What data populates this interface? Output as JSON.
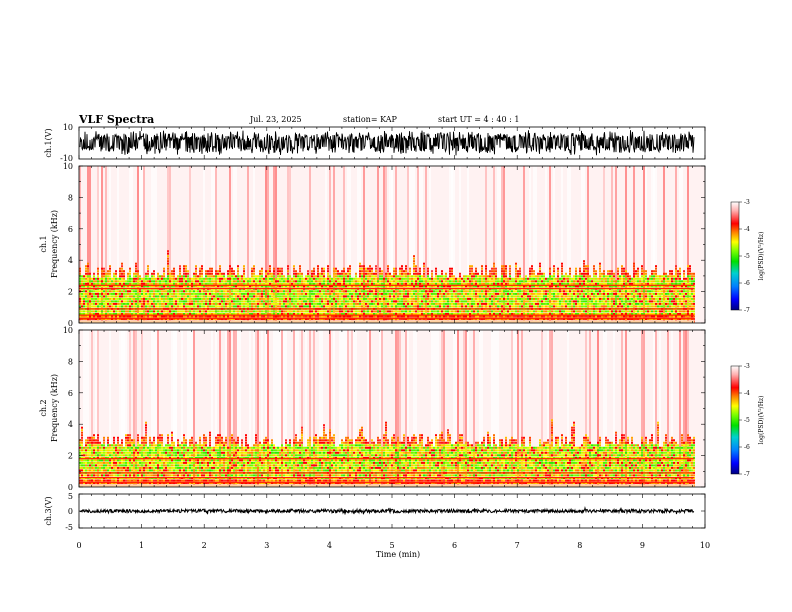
{
  "header": {
    "title": "VLF Spectra",
    "date": "Jul. 23, 2025",
    "station": "station= KAP",
    "start": "start  UT =   4 : 40 : 1"
  },
  "colors": {
    "stops": [
      "#000080",
      "#0000ff",
      "#0080ff",
      "#00d0d0",
      "#00e000",
      "#80ff00",
      "#ffff00",
      "#ff8000",
      "#ff0000",
      "#ffb0b0",
      "#ffffff"
    ],
    "spectrogram_background": "#fff2f2"
  },
  "chart_data": [
    {
      "type": "line",
      "name": "ch1-waveform",
      "ylabel": "ch.1(V)",
      "ylim": [
        -10,
        10
      ],
      "yticks": [
        "10",
        "-10"
      ],
      "xlim": [
        0,
        10
      ],
      "description": "dense oscillating voltage trace over 0-9.8 min",
      "amplitude_range": [
        -8,
        8
      ]
    },
    {
      "type": "heatmap",
      "name": "ch1-spectrogram",
      "ylabel": "ch.1",
      "ylabel2": "Frequency (kHz)",
      "ylim": [
        0,
        10
      ],
      "yticks": [
        "0",
        "2",
        "4",
        "6",
        "8",
        "10"
      ],
      "xlim": [
        0,
        10
      ],
      "data_end_min": 9.83,
      "band_top_khz": 3.5,
      "dense_band_khz": [
        0.4,
        3.0
      ],
      "horizontal_lines_khz": [
        0.3,
        0.5,
        0.9,
        2.2,
        2.4
      ],
      "colorbar": {
        "label": "log(PSD)(V²/Hz)",
        "range": [
          -7,
          -3
        ],
        "ticks": [
          "-3",
          "-4",
          "-5",
          "-6",
          "-7"
        ]
      }
    },
    {
      "type": "heatmap",
      "name": "ch2-spectrogram",
      "ylabel": "ch.2",
      "ylabel2": "Frequency (kHz)",
      "ylim": [
        0,
        10
      ],
      "yticks": [
        "0",
        "2",
        "4",
        "6",
        "8",
        "10"
      ],
      "xlim": [
        0,
        10
      ],
      "data_end_min": 9.83,
      "band_top_khz": 3.2,
      "dense_band_khz": [
        0.4,
        2.7
      ],
      "horizontal_lines_khz": [
        0.3,
        0.6,
        0.9,
        1.8
      ],
      "colorbar": {
        "label": "log(PSD)(V²/Hz)",
        "range": [
          -7,
          -3
        ],
        "ticks": [
          "-3",
          "-4",
          "-5",
          "-6",
          "-7"
        ]
      }
    },
    {
      "type": "line",
      "name": "ch3-waveform",
      "ylabel": "ch.3(V)",
      "ylim": [
        -5,
        5
      ],
      "yticks": [
        "5",
        "0",
        "-5"
      ],
      "xlim": [
        0,
        10
      ],
      "description": "flat thick trace near 0 V",
      "level": 0,
      "amplitude_range": [
        -0.5,
        0.5
      ]
    }
  ],
  "xaxis": {
    "label": "Time (min)",
    "ticks": [
      "0",
      "1",
      "2",
      "3",
      "4",
      "5",
      "6",
      "7",
      "8",
      "9",
      "10"
    ]
  }
}
